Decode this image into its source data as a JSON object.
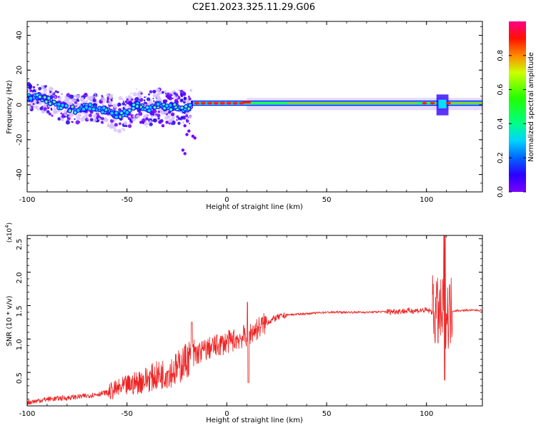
{
  "title": "C2E1.2023.325.11.29.G06",
  "chart_data": [
    {
      "type": "heatmap",
      "xlabel": "Height of straight line (km)",
      "ylabel": "Frequency (Hz)",
      "xlim": [
        -100,
        128
      ],
      "ylim": [
        -50,
        48
      ],
      "xticks": [
        "-100",
        "-50",
        "0",
        "50",
        "100"
      ],
      "yticks": [
        "40",
        "20",
        "0",
        "-20",
        "-40"
      ],
      "colorbar": {
        "label": "Normalized spectral amplitude",
        "ticks": [
          "0.0",
          "0.2",
          "0.4",
          "0.6",
          "0.8"
        ],
        "range": [
          0,
          1
        ]
      },
      "ridge": [
        {
          "x": -100,
          "y": 4
        },
        {
          "x": -95,
          "y": 5
        },
        {
          "x": -90,
          "y": 3
        },
        {
          "x": -85,
          "y": 0
        },
        {
          "x": -80,
          "y": -2
        },
        {
          "x": -75,
          "y": -3
        },
        {
          "x": -70,
          "y": -1
        },
        {
          "x": -65,
          "y": -2
        },
        {
          "x": -60,
          "y": -3
        },
        {
          "x": -55,
          "y": -6
        },
        {
          "x": -50,
          "y": -4
        },
        {
          "x": -45,
          "y": 0
        },
        {
          "x": -40,
          "y": -3
        },
        {
          "x": -35,
          "y": 0
        },
        {
          "x": -30,
          "y": -2
        },
        {
          "x": -25,
          "y": -1
        },
        {
          "x": -20,
          "y": -2
        },
        {
          "x": -15,
          "y": 0
        },
        {
          "x": -10,
          "y": 0
        },
        {
          "x": -5,
          "y": 0
        },
        {
          "x": 0,
          "y": 1
        },
        {
          "x": 5,
          "y": 1
        },
        {
          "x": 10,
          "y": 2
        },
        {
          "x": 20,
          "y": 1
        },
        {
          "x": 40,
          "y": 1
        },
        {
          "x": 60,
          "y": 1
        },
        {
          "x": 80,
          "y": 1
        },
        {
          "x": 100,
          "y": 1
        },
        {
          "x": 108,
          "y": 1
        },
        {
          "x": 128,
          "y": 1
        }
      ]
    },
    {
      "type": "line",
      "xlabel": "Height of straight line (km)",
      "ylabel": "SNR (10 * v/v)",
      "y_multiplier_label": "(x10",
      "y_multiplier_exp": "4",
      "xlim": [
        -100,
        128
      ],
      "ylim": [
        0,
        2.55
      ],
      "xticks": [
        "-100",
        "-50",
        "0",
        "50",
        "100"
      ],
      "yticks": [
        "0.5",
        "1.0",
        "1.5",
        "2.0",
        "2.5"
      ],
      "series": [
        {
          "color": "#ee2222",
          "points": [
            {
              "x": -100,
              "y": 0.05
            },
            {
              "x": -90,
              "y": 0.1
            },
            {
              "x": -80,
              "y": 0.12
            },
            {
              "x": -70,
              "y": 0.15
            },
            {
              "x": -60,
              "y": 0.2
            },
            {
              "x": -50,
              "y": 0.3
            },
            {
              "x": -40,
              "y": 0.4
            },
            {
              "x": -30,
              "y": 0.5
            },
            {
              "x": -25,
              "y": 0.55
            },
            {
              "x": -20,
              "y": 0.7
            },
            {
              "x": -17,
              "y": 0.75
            },
            {
              "x": -10,
              "y": 0.85
            },
            {
              "x": 0,
              "y": 0.95
            },
            {
              "x": 5,
              "y": 1.0
            },
            {
              "x": 10,
              "y": 1.05
            },
            {
              "x": 15,
              "y": 1.15
            },
            {
              "x": 20,
              "y": 1.25
            },
            {
              "x": 25,
              "y": 1.32
            },
            {
              "x": 30,
              "y": 1.36
            },
            {
              "x": 40,
              "y": 1.38
            },
            {
              "x": 50,
              "y": 1.4
            },
            {
              "x": 60,
              "y": 1.4
            },
            {
              "x": 70,
              "y": 1.4
            },
            {
              "x": 80,
              "y": 1.41
            },
            {
              "x": 90,
              "y": 1.42
            },
            {
              "x": 100,
              "y": 1.43
            },
            {
              "x": 104,
              "y": 1.4
            },
            {
              "x": 107,
              "y": 1.35
            },
            {
              "x": 110,
              "y": 1.38
            },
            {
              "x": 112,
              "y": 1.42
            },
            {
              "x": 120,
              "y": 1.43
            },
            {
              "x": 128,
              "y": 1.43
            }
          ]
        }
      ]
    }
  ]
}
